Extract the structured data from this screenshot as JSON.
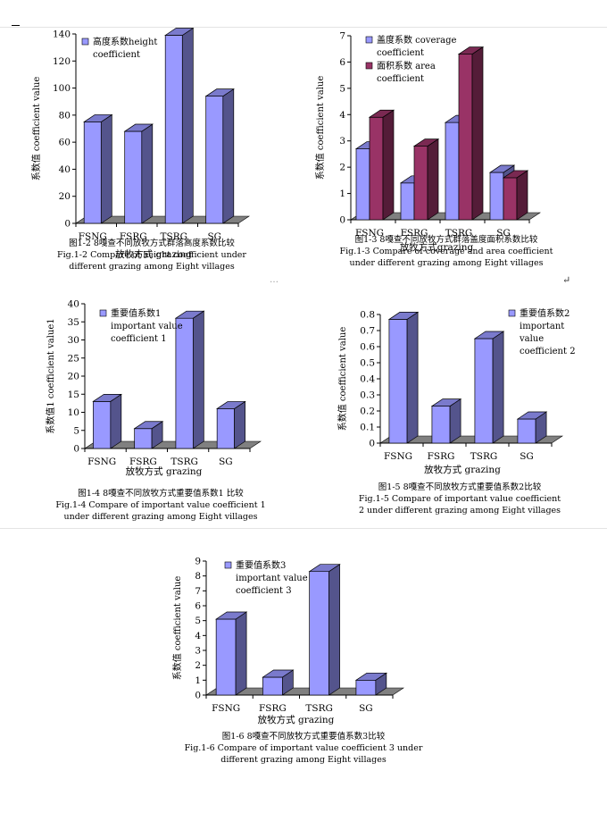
{
  "page": {
    "ellipsis": "…",
    "cursor_glyph": "↵"
  },
  "chart_data": [
    {
      "id": "fig12",
      "type": "bar",
      "categories": [
        "FSNG",
        "FSRG",
        "TSRG",
        "SG"
      ],
      "series": [
        {
          "name": "高度系数height coefficient",
          "name_lines": [
            "高度系数height",
            "coefficient"
          ],
          "values": [
            75,
            68,
            139,
            94
          ],
          "color": "#9999ff"
        }
      ],
      "ylim": [
        0,
        140
      ],
      "yticks": [
        0,
        20,
        40,
        60,
        80,
        100,
        120,
        140
      ],
      "ylabel": "系数值 coefficient value",
      "xlabel": "放牧方式 grazing",
      "caption": [
        "图1-2 8嘎查不同放牧方式群落高度系数比较",
        "Fig.1-2 Compare of height coefficient under",
        "different grazing among Eight villages"
      ]
    },
    {
      "id": "fig13",
      "type": "bar",
      "categories": [
        "FSNG",
        "FSRG",
        "TSRG",
        "SG"
      ],
      "series": [
        {
          "name": "盖度系数 coverage coefficient",
          "name_lines": [
            "盖度系数 coverage",
            "coefficient"
          ],
          "values": [
            2.7,
            1.4,
            3.7,
            1.8
          ],
          "color": "#9999ff"
        },
        {
          "name": "面积系数 area coefficient",
          "name_lines": [
            "面积系数 area",
            "coefficient"
          ],
          "values": [
            3.9,
            2.8,
            6.3,
            1.6
          ],
          "color": "#993366"
        }
      ],
      "ylim": [
        0,
        7
      ],
      "yticks": [
        0,
        1,
        2,
        3,
        4,
        5,
        6,
        7
      ],
      "ylabel": "系数值 coefficient value",
      "xlabel": "放牧方式grazing",
      "caption": [
        "图1-3 8嘎查不同放牧方式群落盖度面积系数比较",
        "Fig.1-3 Compare of coverage and area coefficient",
        "under different grazing among Eight villages"
      ]
    },
    {
      "id": "fig14",
      "type": "bar",
      "categories": [
        "FSNG",
        "FSRG",
        "TSRG",
        "SG"
      ],
      "series": [
        {
          "name": "重要值系数1 important value coefficient 1",
          "name_lines": [
            "重要值系数1",
            "important value",
            "coefficient 1"
          ],
          "values": [
            13,
            5.5,
            36,
            11
          ],
          "color": "#9999ff"
        }
      ],
      "ylim": [
        0,
        40
      ],
      "yticks": [
        0,
        5,
        10,
        15,
        20,
        25,
        30,
        35,
        40
      ],
      "ylabel": "系数值1 coefficient value1",
      "xlabel": "放牧方式 grazing",
      "caption": [
        "图1-4 8嘎查不同放牧方式重要值系数1 比较",
        "Fig.1-4 Compare of important value coefficient 1",
        "under different grazing among Eight villages"
      ]
    },
    {
      "id": "fig15",
      "type": "bar",
      "categories": [
        "FSNG",
        "FSRG",
        "TSRG",
        "SG"
      ],
      "series": [
        {
          "name": "重要值系数2 important value coefficient 2",
          "name_lines": [
            "重要值系数2",
            "important",
            "value",
            "coefficient 2"
          ],
          "values": [
            0.77,
            0.23,
            0.65,
            0.15
          ],
          "color": "#9999ff"
        }
      ],
      "ylim": [
        0,
        0.8
      ],
      "yticks": [
        0,
        0.1,
        0.2,
        0.3,
        0.4,
        0.5,
        0.6,
        0.7,
        0.8
      ],
      "ylabel": "系数值 coefficient value",
      "xlabel": "放牧方式 grazing",
      "caption": [
        "图1-5 8嘎查不同放牧方式重要值系数2比较",
        "Fig.1-5 Compare of important value coefficient",
        "2 under different grazing among Eight villages"
      ]
    },
    {
      "id": "fig16",
      "type": "bar",
      "categories": [
        "FSNG",
        "FSRG",
        "TSRG",
        "SG"
      ],
      "series": [
        {
          "name": "重要值系数3 important value coefficient 3",
          "name_lines": [
            "重要值系数3",
            "important value",
            "coefficient 3"
          ],
          "values": [
            5.1,
            1.2,
            8.3,
            1.0
          ],
          "color": "#9999ff"
        }
      ],
      "ylim": [
        0,
        9
      ],
      "yticks": [
        0,
        1,
        2,
        3,
        4,
        5,
        6,
        7,
        8,
        9
      ],
      "ylabel": "系数值 coefficient value",
      "xlabel": "放牧方式 grazing",
      "caption": [
        "图1-6 8嘎查不同放牧方式重要值系数3比较",
        "Fig.1-6 Compare of important value coefficient 3 under",
        "different grazing among Eight villages"
      ]
    }
  ]
}
